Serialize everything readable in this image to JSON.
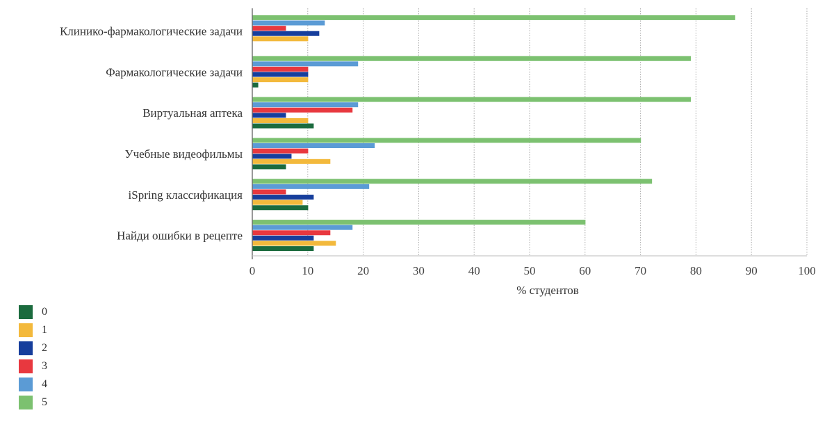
{
  "chart_data": {
    "type": "bar",
    "orientation": "horizontal",
    "categories": [
      "Клинико-фармакологические задачи",
      "Фармакологические задачи",
      "Виртуальная аптека",
      "Учебные видеофильмы",
      "iSpring классификация",
      "Найди ошибки в рецепте"
    ],
    "series": [
      {
        "name": "0",
        "color": "#1b6b3e",
        "values": [
          0,
          1,
          11,
          6,
          10,
          11
        ]
      },
      {
        "name": "1",
        "color": "#f3b93c",
        "values": [
          10,
          10,
          10,
          14,
          9,
          15
        ]
      },
      {
        "name": "2",
        "color": "#163e9c",
        "values": [
          12,
          10,
          6,
          7,
          11,
          11
        ]
      },
      {
        "name": "3",
        "color": "#e8383f",
        "values": [
          6,
          10,
          18,
          10,
          6,
          14
        ]
      },
      {
        "name": "4",
        "color": "#5b9bd5",
        "values": [
          13,
          19,
          19,
          22,
          21,
          18
        ]
      },
      {
        "name": "5",
        "color": "#7cc170",
        "values": [
          87,
          79,
          79,
          70,
          72,
          60
        ]
      }
    ],
    "xlabel": "% студентов",
    "xlim": [
      0,
      100
    ],
    "xticks": [
      "0",
      "10",
      "20",
      "30",
      "40",
      "50",
      "60",
      "70",
      "80",
      "90",
      "100"
    ],
    "grid": "vertical dotted",
    "legend_position": "bottom-left"
  }
}
